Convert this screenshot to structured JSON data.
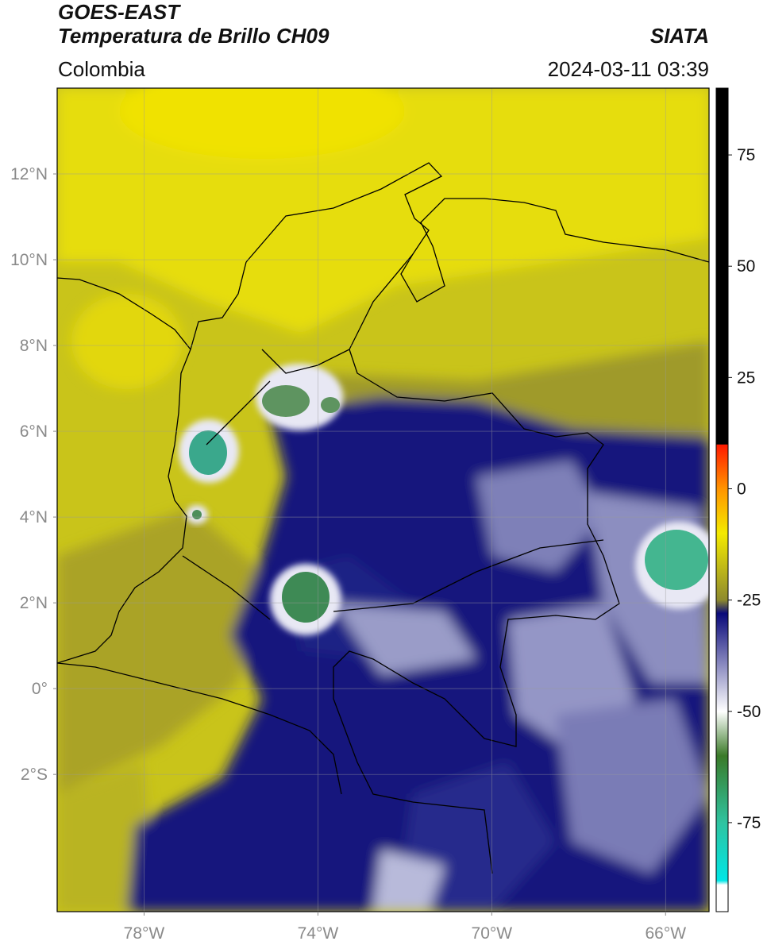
{
  "header": {
    "satellite": "GOES-EAST",
    "product": "Temperatura de Brillo CH09",
    "organization": "SIATA",
    "region": "Colombia",
    "timestamp": "2024-03-11 03:39"
  },
  "map": {
    "lon_range": [
      -80.0,
      -65.0
    ],
    "lat_range": [
      -5.2,
      14.0
    ],
    "lat_ticks": [
      {
        "value": 12,
        "label": "12°N"
      },
      {
        "value": 10,
        "label": "10°N"
      },
      {
        "value": 8,
        "label": "8°N"
      },
      {
        "value": 6,
        "label": "6°N"
      },
      {
        "value": 4,
        "label": "4°N"
      },
      {
        "value": 2,
        "label": "2°N"
      },
      {
        "value": 0,
        "label": "0°"
      },
      {
        "value": -2,
        "label": "2°S"
      }
    ],
    "lon_ticks": [
      {
        "value": -78,
        "label": "78°W"
      },
      {
        "value": -74,
        "label": "74°W"
      },
      {
        "value": -70,
        "label": "70°W"
      },
      {
        "value": -66,
        "label": "66°W"
      }
    ],
    "gridlines": true
  },
  "colorbar": {
    "range": [
      -95,
      90
    ],
    "ticks": [
      {
        "value": 75,
        "label": "75"
      },
      {
        "value": 50,
        "label": "50"
      },
      {
        "value": 25,
        "label": "25"
      },
      {
        "value": 0,
        "label": "0"
      },
      {
        "value": -25,
        "label": "-25"
      },
      {
        "value": -50,
        "label": "-50"
      },
      {
        "value": -75,
        "label": "-75"
      }
    ],
    "colors": {
      "black": "#000000",
      "red": "#ff1a00",
      "orange": "#ff9400",
      "yellow": "#f4ea00",
      "olive": "#8e8a2e",
      "navy": "#0a0a7a",
      "white": "#ffffff",
      "green": "#3a7a28",
      "teal": "#2fc3a0",
      "cyan": "#00e6e6"
    }
  }
}
